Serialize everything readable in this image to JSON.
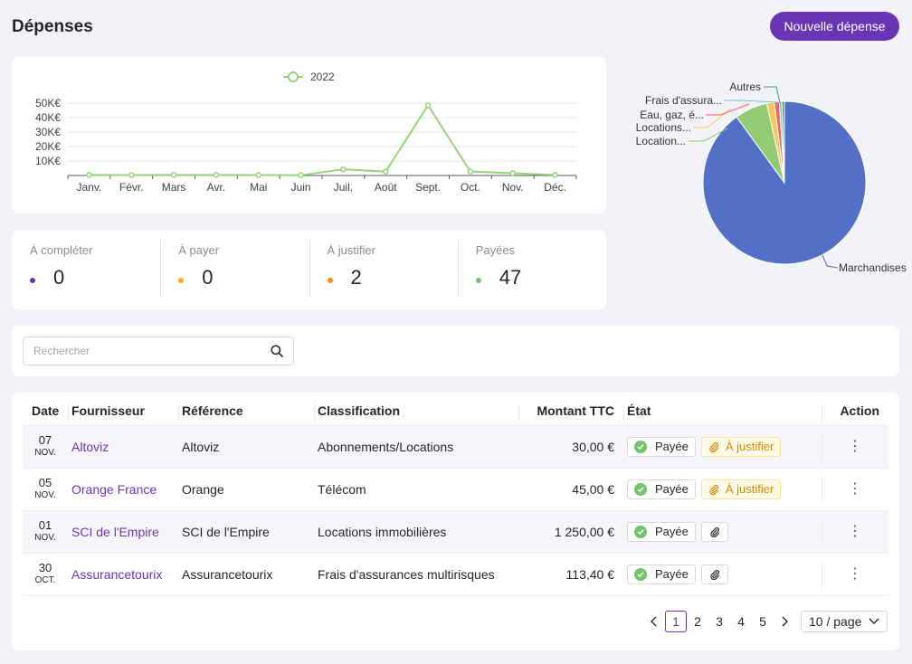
{
  "header": {
    "title": "Dépenses",
    "new_button_label": "Nouvelle dépense"
  },
  "colors": {
    "accent": "#6a35b4",
    "line": "#95d47c",
    "pie_marchandises": "#5470c6",
    "pie_location_1": "#91cc75",
    "pie_location_2": "#fac858",
    "pie_eau": "#ee6666",
    "pie_frais": "#73c0de",
    "pie_autres": "#3ba272"
  },
  "chart_data": [
    {
      "type": "line",
      "legend": [
        "2022"
      ],
      "categories": [
        "Janv.",
        "Févr.",
        "Mars",
        "Avr.",
        "Mai",
        "Juin",
        "Juil.",
        "Août",
        "Sept.",
        "Oct.",
        "Nov.",
        "Déc."
      ],
      "series": [
        {
          "name": "2022",
          "values": [
            400,
            300,
            400,
            400,
            300,
            200,
            4300,
            2700,
            48500,
            2700,
            1600,
            400
          ]
        }
      ],
      "y_ticks": [
        "10K€",
        "20K€",
        "30K€",
        "40K€",
        "50K€"
      ],
      "ylim": [
        0,
        50000
      ],
      "grid": true,
      "legend_position": "top-center"
    },
    {
      "type": "pie",
      "labels": [
        "Marchandises",
        "Location...",
        "Locations...",
        "Eau, gaz, é...",
        "Frais d'assura...",
        "Autres"
      ],
      "values": [
        90,
        6.5,
        1.5,
        1.0,
        0.5,
        0.5
      ]
    }
  ],
  "stats": [
    {
      "label": "À compléter",
      "value": "0",
      "color": "#6a35b4"
    },
    {
      "label": "À payer",
      "value": "0",
      "color": "#faad14"
    },
    {
      "label": "À justifier",
      "value": "2",
      "color": "#fa8c16"
    },
    {
      "label": "Payées",
      "value": "47",
      "color": "#73c46a"
    }
  ],
  "search": {
    "placeholder": "Rechercher"
  },
  "table": {
    "columns": [
      "Date",
      "Fournisseur",
      "Référence",
      "Classification",
      "Montant TTC",
      "État",
      "Action"
    ],
    "rows": [
      {
        "day": "07",
        "month": "NOV.",
        "supplier": "Altoviz",
        "reference": "Altoviz",
        "classification": "Abonnements/Locations",
        "amount": "30,00 €",
        "status": "Payée",
        "justify": "À justifier"
      },
      {
        "day": "05",
        "month": "NOV.",
        "supplier": "Orange France",
        "reference": "Orange",
        "classification": "Télécom",
        "amount": "45,00 €",
        "status": "Payée",
        "justify": "À justifier"
      },
      {
        "day": "01",
        "month": "NOV.",
        "supplier": "SCI de l'Empire",
        "reference": "SCI de l'Empire",
        "classification": "Locations immobilières",
        "amount": "1 250,00 €",
        "status": "Payée",
        "justify": ""
      },
      {
        "day": "30",
        "month": "OCT.",
        "supplier": "Assurancetourix",
        "reference": "Assurancetourix",
        "classification": "Frais d'assurances multirisques",
        "amount": "113,40 €",
        "status": "Payée",
        "justify": ""
      }
    ]
  },
  "pagination": {
    "pages": [
      "1",
      "2",
      "3",
      "4",
      "5"
    ],
    "current": "1",
    "page_size": "10 / page"
  }
}
